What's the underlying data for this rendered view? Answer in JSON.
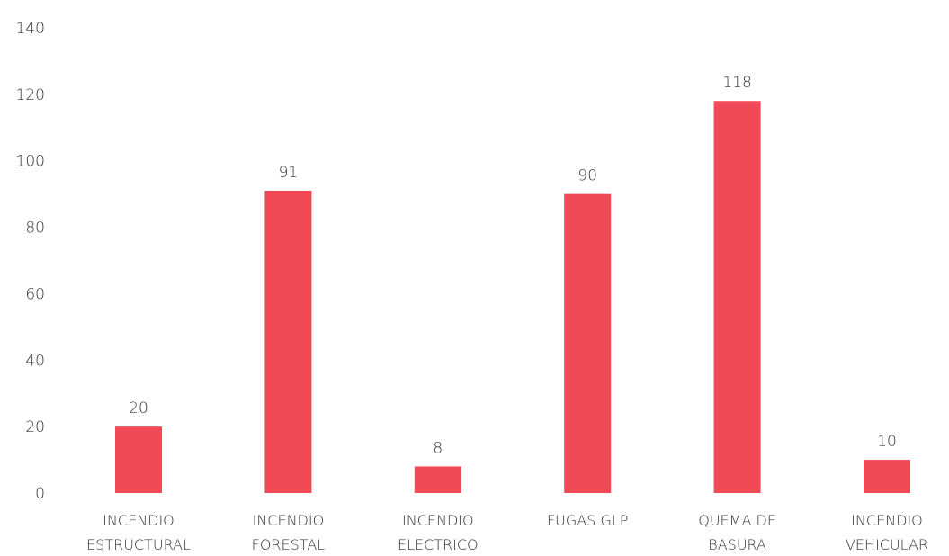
{
  "chart_data": {
    "type": "bar",
    "categories": [
      [
        "INCENDIO",
        "ESTRUCTURAL"
      ],
      [
        "INCENDIO",
        "FORESTAL"
      ],
      [
        "INCENDIO",
        "ELECTRICO"
      ],
      [
        "FUGAS GLP"
      ],
      [
        "QUEMA DE",
        "BASURA"
      ],
      [
        "INCENDIO",
        "VEHICULAR"
      ]
    ],
    "values": [
      20,
      91,
      8,
      90,
      118,
      10
    ],
    "data_labels": [
      "20",
      "91",
      "8",
      "90",
      "118",
      "10"
    ],
    "ylim": [
      0,
      140
    ],
    "yticks": [
      0,
      20,
      40,
      60,
      80,
      100,
      120,
      140
    ],
    "title": "",
    "xlabel": "",
    "ylabel": "",
    "grid": false,
    "legend": "none",
    "bar_color": "#EF4A55"
  }
}
